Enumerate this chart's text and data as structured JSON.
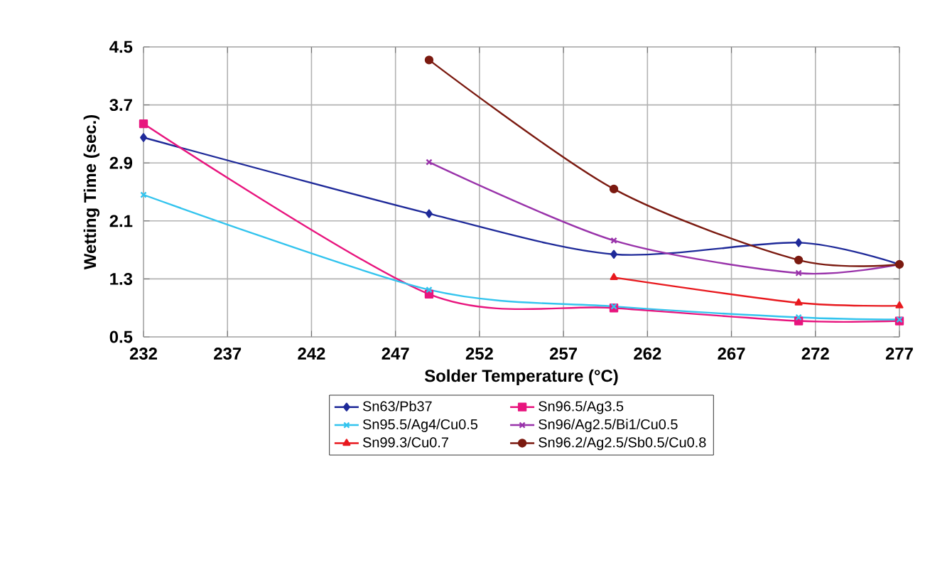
{
  "chart_data": {
    "type": "line",
    "xlabel": "Solder Temperature (°C)",
    "ylabel": "Wetting Time (sec.)",
    "xlim": [
      232,
      277
    ],
    "xticks": [
      232,
      237,
      242,
      247,
      252,
      257,
      262,
      267,
      272,
      277
    ],
    "ylim": [
      0.5,
      4.5
    ],
    "yticks": [
      0.5,
      1.3,
      2.1,
      2.9,
      3.7,
      4.5
    ],
    "grid": true,
    "legend": "bottom",
    "line_style": "solid",
    "x": [
      232,
      249,
      260,
      271,
      277
    ],
    "series": [
      {
        "name": "Sn63/Pb37",
        "color": "#1f2a99",
        "marker": "diamond",
        "values": [
          3.25,
          2.2,
          1.64,
          1.8,
          1.5
        ]
      },
      {
        "name": "Sn96.5/Ag3.5",
        "color": "#e8157e",
        "marker": "square",
        "values": [
          3.44,
          1.09,
          0.9,
          0.72,
          0.72
        ]
      },
      {
        "name": "Sn95.5/Ag4/Cu0.5",
        "color": "#33c4ee",
        "marker": "cross",
        "values": [
          2.46,
          1.15,
          0.92,
          0.77,
          0.74
        ]
      },
      {
        "name": "Sn96/Ag2.5/Bi1/Cu0.5",
        "color": "#9933aa",
        "marker": "cross",
        "values": [
          null,
          2.91,
          1.83,
          1.38,
          1.5
        ]
      },
      {
        "name": "Sn99.3/Cu0.7",
        "color": "#e8191e",
        "marker": "triangle",
        "values": [
          null,
          null,
          1.32,
          0.97,
          0.93
        ]
      },
      {
        "name": "Sn96.2/Ag2.5/Sb0.5/Cu0.8",
        "color": "#7b1a10",
        "marker": "circle",
        "values": [
          null,
          4.32,
          2.54,
          1.56,
          1.5
        ]
      }
    ]
  }
}
